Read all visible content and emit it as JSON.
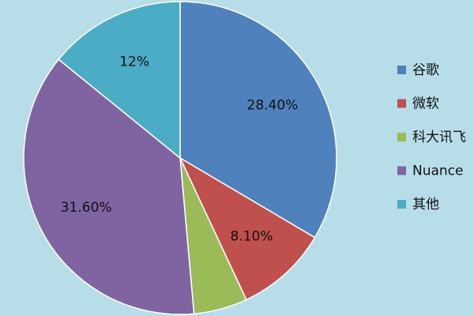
{
  "chart_data": {
    "type": "pie",
    "categories": [
      "谷歌",
      "微软",
      "科大讯飞",
      "Nuance",
      "其他"
    ],
    "values": [
      28.4,
      8.1,
      4.7,
      31.6,
      12
    ],
    "value_labels": [
      "28.40%",
      "8.10%",
      null,
      "31.60%",
      "12%"
    ],
    "colors": [
      "#4f81bd",
      "#c0504d",
      "#9bbb59",
      "#8064a2",
      "#4bacc6"
    ],
    "legend": "right"
  }
}
